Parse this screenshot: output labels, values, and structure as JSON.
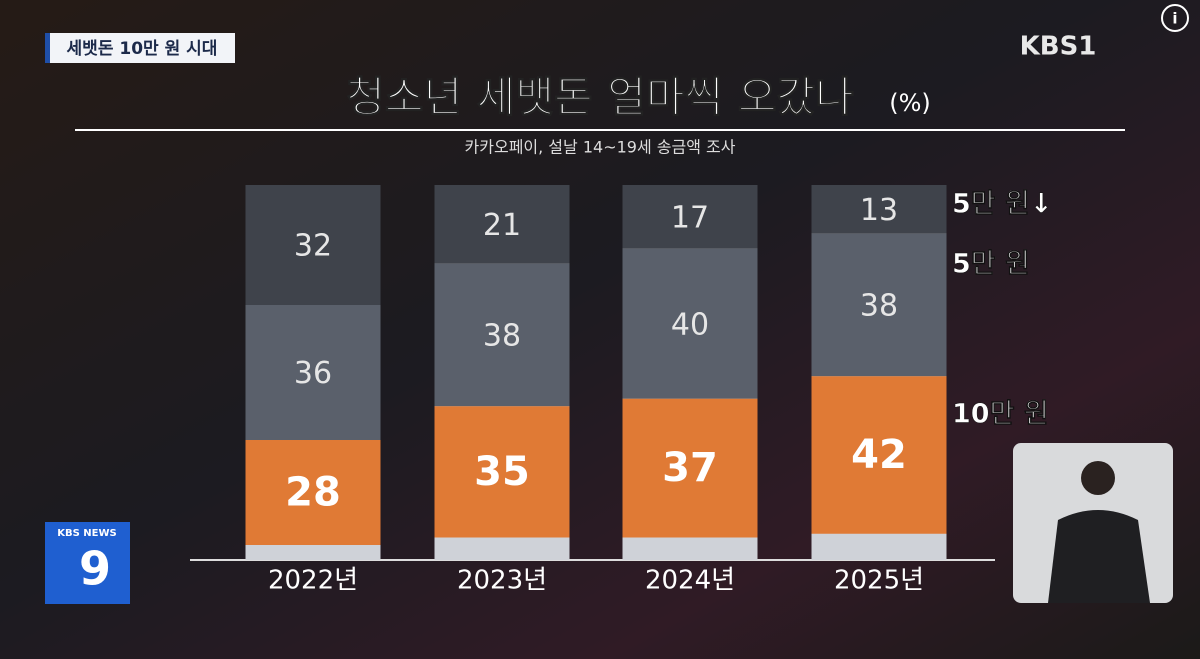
{
  "overlay": {
    "tag": "세뱃돈 10만 원 시대",
    "channel": "KBS1",
    "news_logo": "KBS NEWS",
    "news_number": "9",
    "info": "i"
  },
  "chart_data": {
    "type": "bar",
    "stacked": true,
    "title": "청소년 세뱃돈 얼마씩 오갔나",
    "unit": "(%)",
    "subtitle": "카카오페이, 설날 14~19세 송금액 조사",
    "categories": [
      "2022년",
      "2023년",
      "2024년",
      "2025년"
    ],
    "ylim": [
      0,
      100
    ],
    "series": [
      {
        "name": "5만 원↓",
        "color": "#3f434b",
        "values": [
          32,
          21,
          17,
          13
        ]
      },
      {
        "name": "5만 원",
        "color": "#5a606b",
        "values": [
          36,
          38,
          40,
          38
        ]
      },
      {
        "name": "10만 원",
        "color": "#e07a35",
        "values": [
          28,
          35,
          37,
          42
        ]
      }
    ]
  }
}
